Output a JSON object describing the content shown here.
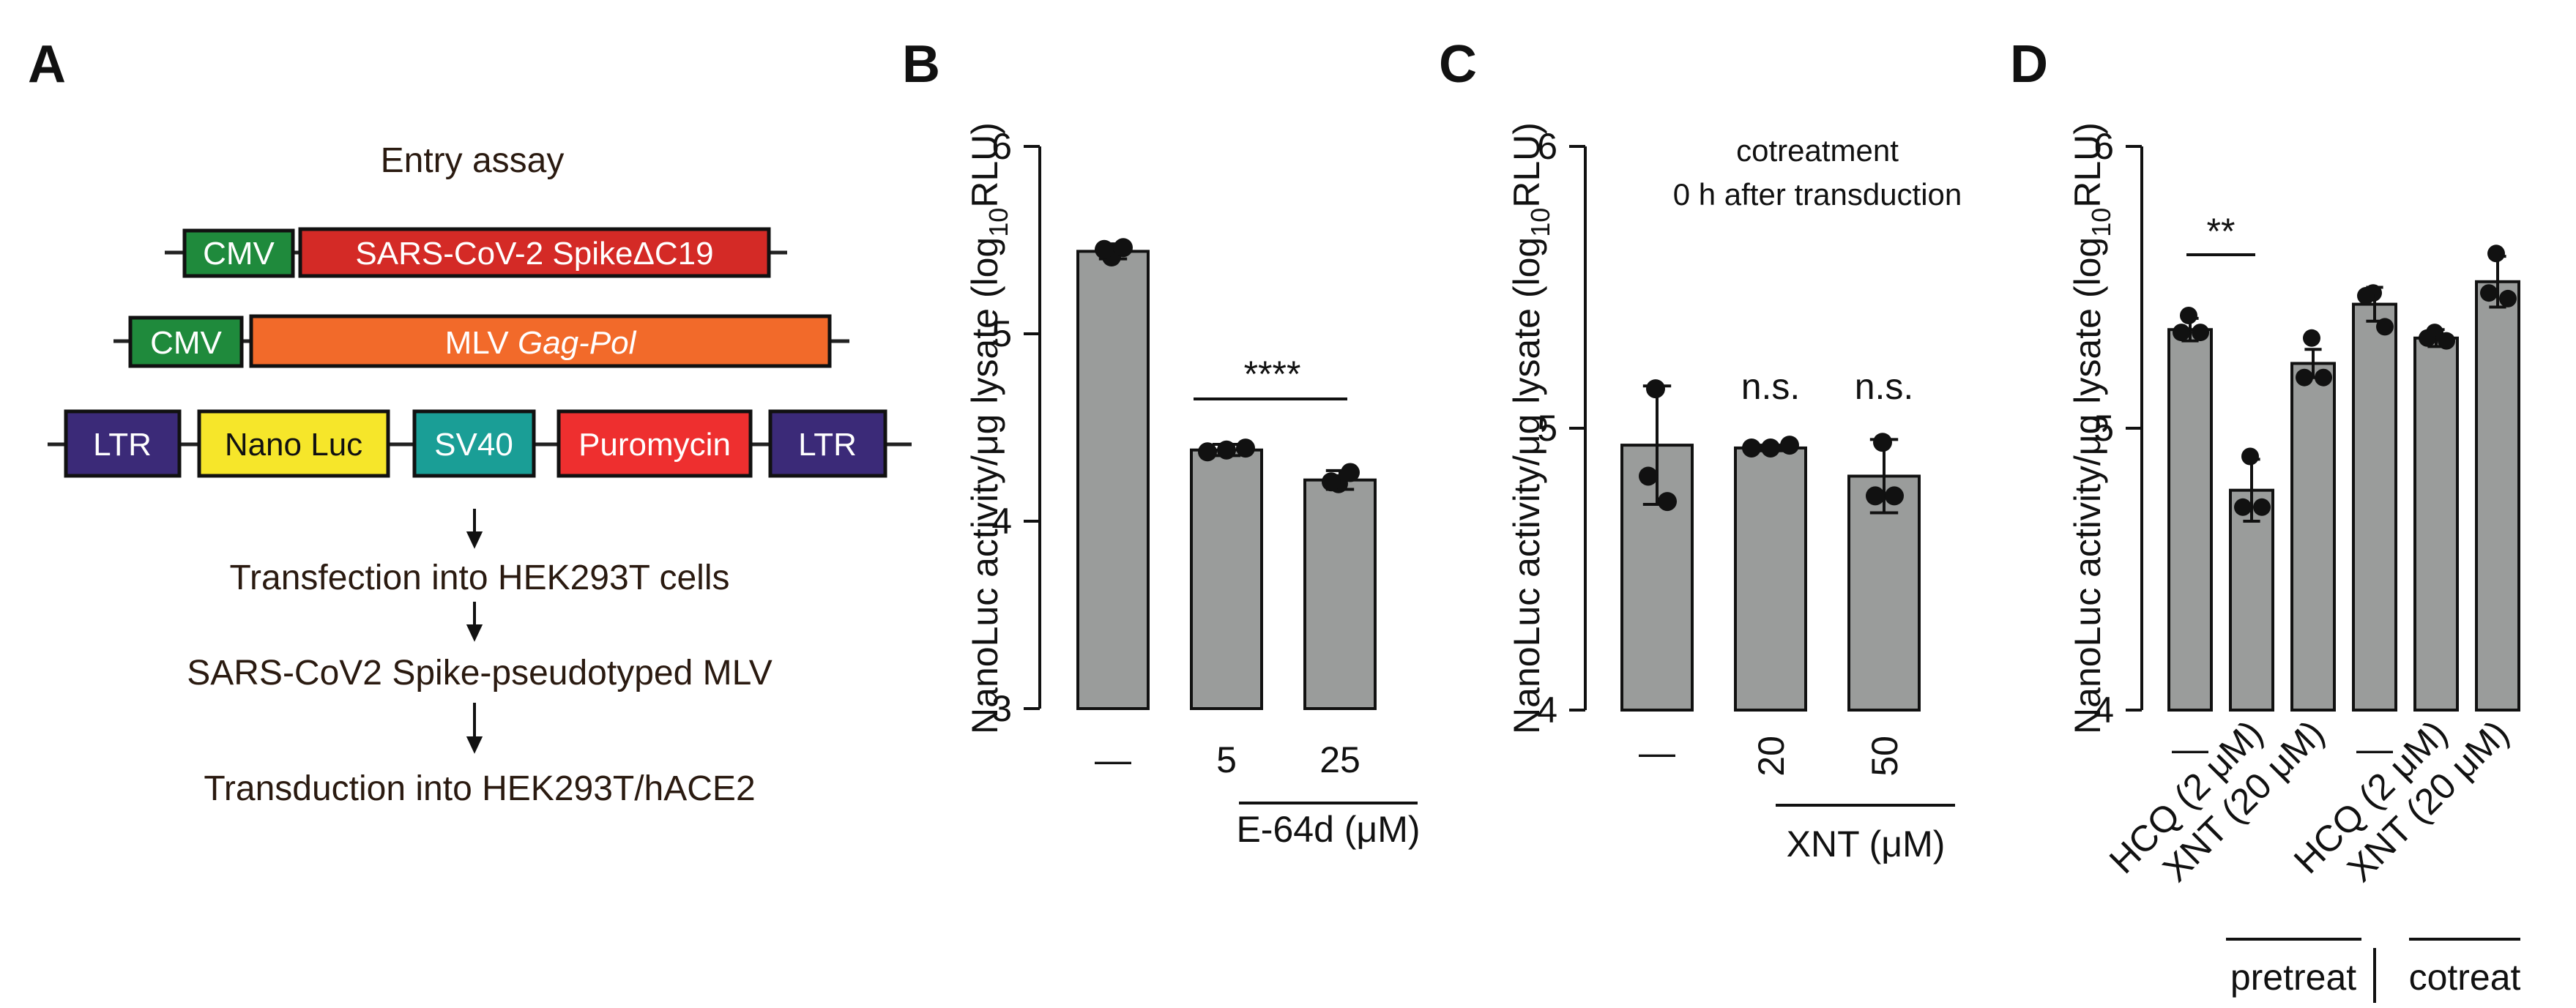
{
  "panels": {
    "a": "A",
    "b": "B",
    "c": "C",
    "d": "D"
  },
  "diagram": {
    "title": "Entry assay",
    "construct1": {
      "promoter": "CMV",
      "gene": "SARS-CoV-2 SpikeΔC19"
    },
    "construct2": {
      "promoter": "CMV",
      "gene_prefix": "MLV ",
      "gene_italic": "Gag-Pol"
    },
    "construct3": [
      "LTR",
      "Nano Luc",
      "SV40",
      "Puromycin",
      "LTR"
    ],
    "steps": [
      "Transfection into HEK293T cells",
      "SARS-CoV2 Spike-pseudotyped MLV",
      "Transduction into HEK293T/hACE2"
    ],
    "colors": {
      "cmv": "#1f8a3c",
      "spike": "#d42a26",
      "gagpol": "#f26a2a",
      "ltr": "#3b2a78",
      "nanoluc": "#f6e62a",
      "sv40": "#1a9e96",
      "puro": "#ee2f2f"
    }
  },
  "ylabel": {
    "main": "NanoLuc activity/μg lysate (log",
    "sub": "10",
    "tail": "RLU)"
  },
  "chart_data": [
    {
      "panel": "B",
      "type": "bar",
      "categories": [
        "—",
        "5",
        "25"
      ],
      "group_label": "E-64d (μM)",
      "values": [
        5.44,
        4.38,
        4.22
      ],
      "sd": [
        0.04,
        0.03,
        0.05
      ],
      "points": [
        [
          5.41,
          5.45,
          5.46
        ],
        [
          4.37,
          4.38,
          4.39
        ],
        [
          4.2,
          4.21,
          4.26
        ]
      ],
      "ylim": [
        3,
        6
      ],
      "yticks": [
        "3",
        "4",
        "5",
        "6"
      ],
      "significance": "****"
    },
    {
      "panel": "C",
      "type": "bar",
      "categories": [
        "—",
        "20",
        "50"
      ],
      "group_label": "XNT (μM)",
      "values": [
        4.94,
        4.93,
        4.83
      ],
      "sd": [
        0.21,
        0.01,
        0.13
      ],
      "points": [
        [
          5.14,
          4.83,
          4.74
        ],
        [
          4.93,
          4.93,
          4.94
        ],
        [
          4.95,
          4.76,
          4.76
        ]
      ],
      "ylim": [
        4,
        6
      ],
      "yticks": [
        "4",
        "5",
        "6"
      ],
      "annotations": [
        "n.s.",
        "n.s."
      ],
      "title_line1": "cotreatment",
      "title_line2": "0 h after transduction"
    },
    {
      "panel": "D",
      "type": "bar",
      "categories": [
        "—",
        "HCQ (2 μM)",
        "XNT (20 μM)",
        "—",
        "HCQ (2 μM)",
        "XNT (20 μM)"
      ],
      "groups": [
        "pretreat",
        "cotreat"
      ],
      "values": [
        5.35,
        4.78,
        5.23,
        5.44,
        5.32,
        5.52
      ],
      "sd": [
        0.04,
        0.11,
        0.05,
        0.06,
        0.03,
        0.09
      ],
      "points": [
        [
          5.4,
          5.34,
          5.34
        ],
        [
          4.9,
          4.72,
          4.72
        ],
        [
          5.32,
          5.18,
          5.18
        ],
        [
          5.48,
          5.47,
          5.36
        ],
        [
          5.34,
          5.32,
          5.31
        ],
        [
          5.62,
          5.48,
          5.46
        ]
      ],
      "ylim": [
        4,
        6
      ],
      "yticks": [
        "4",
        "5",
        "6"
      ],
      "significance": "**"
    }
  ]
}
